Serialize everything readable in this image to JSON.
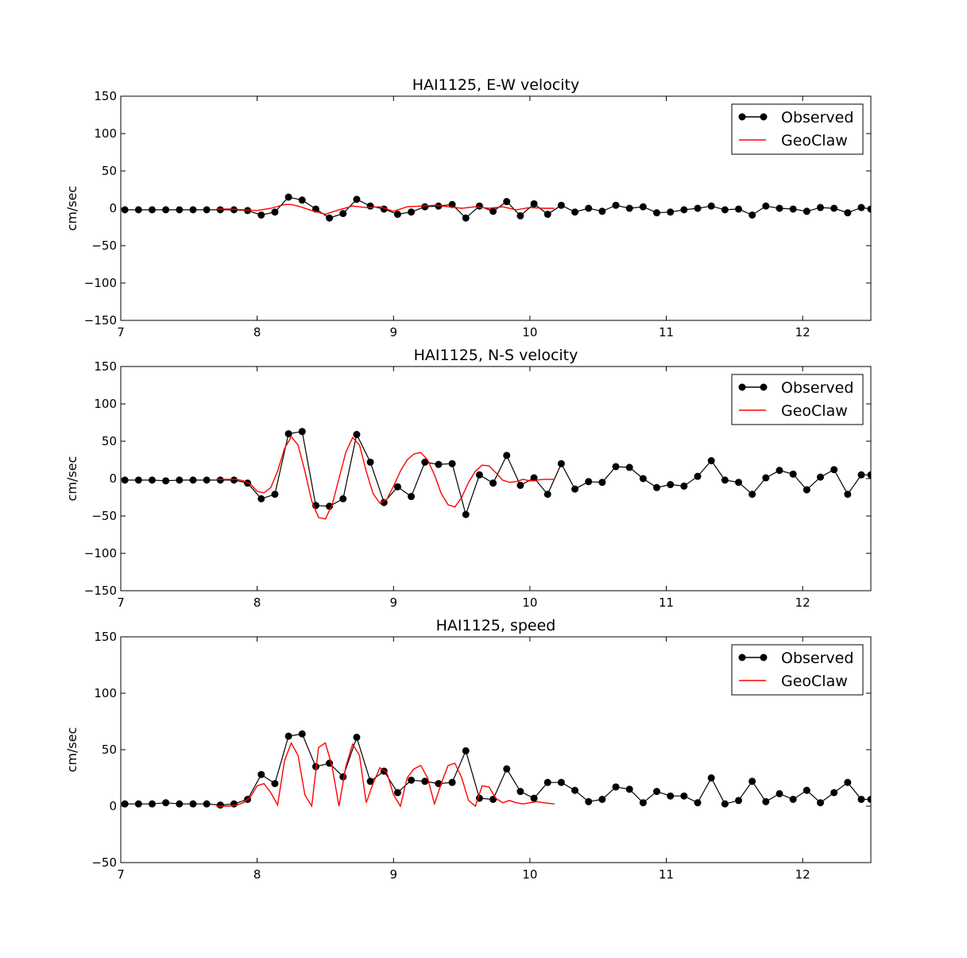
{
  "chart_data": [
    {
      "type": "line",
      "title": "HAI1125, E-W velocity",
      "xlabel": "",
      "ylabel": "cm/sec",
      "xlim": [
        7,
        12.5
      ],
      "ylim": [
        -150,
        150
      ],
      "xticks": [
        "7",
        "8",
        "9",
        "10",
        "11",
        "12"
      ],
      "yticks": [
        "150",
        "100",
        "50",
        "0",
        "−50",
        "−100",
        "−150"
      ],
      "legend_position": "top-right",
      "series": [
        {
          "name": "Observed",
          "color": "#000000",
          "style": "line-with-markers",
          "x": [
            7.03,
            7.13,
            7.23,
            7.33,
            7.43,
            7.53,
            7.63,
            7.73,
            7.83,
            7.93,
            8.03,
            8.13,
            8.23,
            8.33,
            8.43,
            8.53,
            8.63,
            8.73,
            8.83,
            8.93,
            9.03,
            9.13,
            9.23,
            9.33,
            9.43,
            9.53,
            9.63,
            9.73,
            9.83,
            9.93,
            10.03,
            10.13,
            10.23,
            10.33,
            10.43,
            10.53,
            10.63,
            10.73,
            10.83,
            10.93,
            11.03,
            11.13,
            11.23,
            11.33,
            11.43,
            11.53,
            11.63,
            11.73,
            11.83,
            11.93,
            12.03,
            12.13,
            12.23,
            12.33,
            12.43,
            12.5
          ],
          "y": [
            -2,
            -2,
            -2,
            -2,
            -2,
            -2,
            -2,
            -2,
            -2,
            -3,
            -9,
            -5,
            15,
            11,
            -1,
            -13,
            -7,
            12,
            3,
            -1,
            -8,
            -5,
            2,
            3,
            5,
            -13,
            3,
            -4,
            9,
            -10,
            6,
            -8,
            4,
            -5,
            0,
            -4,
            4,
            0,
            2,
            -6,
            -5,
            -2,
            0,
            3,
            -2,
            -1,
            -9,
            3,
            0,
            -1,
            -4,
            1,
            0,
            -6,
            1,
            -1
          ]
        },
        {
          "name": "GeoClaw",
          "color": "#ff0000",
          "style": "line",
          "x": [
            7.7,
            7.8,
            7.9,
            8.0,
            8.1,
            8.2,
            8.25,
            8.3,
            8.4,
            8.5,
            8.6,
            8.7,
            8.8,
            8.9,
            9.0,
            9.1,
            9.2,
            9.3,
            9.4,
            9.5,
            9.6,
            9.7,
            9.8,
            9.9,
            10.0,
            10.1,
            10.18
          ],
          "y": [
            -1,
            -1,
            -2,
            -3,
            0,
            5,
            5,
            3,
            -3,
            -8,
            -2,
            3,
            1,
            2,
            -4,
            2,
            3,
            4,
            2,
            0,
            2,
            0,
            2,
            -2,
            1,
            0,
            0
          ]
        }
      ]
    },
    {
      "type": "line",
      "title": "HAI1125, N-S velocity",
      "xlabel": "",
      "ylabel": "cm/sec",
      "xlim": [
        7,
        12.5
      ],
      "ylim": [
        -150,
        150
      ],
      "xticks": [
        "7",
        "8",
        "9",
        "10",
        "11",
        "12"
      ],
      "yticks": [
        "150",
        "100",
        "50",
        "0",
        "−50",
        "−100",
        "−150"
      ],
      "legend_position": "top-right",
      "series": [
        {
          "name": "Observed",
          "color": "#000000",
          "style": "line-with-markers",
          "x": [
            7.03,
            7.13,
            7.23,
            7.33,
            7.43,
            7.53,
            7.63,
            7.73,
            7.83,
            7.93,
            8.03,
            8.13,
            8.23,
            8.33,
            8.43,
            8.53,
            8.63,
            8.73,
            8.83,
            8.93,
            9.03,
            9.13,
            9.23,
            9.33,
            9.43,
            9.53,
            9.63,
            9.73,
            9.83,
            9.93,
            10.03,
            10.13,
            10.23,
            10.33,
            10.43,
            10.53,
            10.63,
            10.73,
            10.83,
            10.93,
            11.03,
            11.13,
            11.23,
            11.33,
            11.43,
            11.53,
            11.63,
            11.73,
            11.83,
            11.93,
            12.03,
            12.13,
            12.23,
            12.33,
            12.43,
            12.5
          ],
          "y": [
            -2,
            -2,
            -2,
            -3,
            -2,
            -2,
            -2,
            -2,
            -2,
            -6,
            -27,
            -21,
            60,
            63,
            -36,
            -37,
            -27,
            59,
            22,
            -32,
            -11,
            -24,
            22,
            19,
            20,
            -48,
            5,
            -6,
            31,
            -9,
            1,
            -21,
            20,
            -14,
            -4,
            -5,
            16,
            15,
            0,
            -12,
            -8,
            -10,
            3,
            24,
            -2,
            -5,
            -21,
            1,
            11,
            6,
            -15,
            2,
            12,
            -21,
            5,
            5
          ]
        },
        {
          "name": "GeoClaw",
          "color": "#ff0000",
          "style": "line",
          "x": [
            7.7,
            7.8,
            7.85,
            7.9,
            7.95,
            8.0,
            8.05,
            8.1,
            8.15,
            8.2,
            8.25,
            8.3,
            8.35,
            8.4,
            8.45,
            8.5,
            8.55,
            8.6,
            8.65,
            8.7,
            8.75,
            8.8,
            8.85,
            8.9,
            8.95,
            9.0,
            9.05,
            9.1,
            9.15,
            9.2,
            9.25,
            9.3,
            9.35,
            9.4,
            9.45,
            9.5,
            9.55,
            9.6,
            9.65,
            9.7,
            9.75,
            9.8,
            9.85,
            9.9,
            9.95,
            10.0,
            10.05,
            10.1,
            10.18
          ],
          "y": [
            -1,
            -1,
            -1,
            -3,
            -7,
            -17,
            -19,
            -12,
            10,
            40,
            56,
            45,
            10,
            -30,
            -52,
            -54,
            -35,
            0,
            35,
            55,
            45,
            10,
            -20,
            -33,
            -28,
            -10,
            10,
            25,
            33,
            35,
            25,
            5,
            -20,
            -35,
            -38,
            -25,
            -5,
            10,
            18,
            17,
            8,
            -2,
            -5,
            -4,
            -1,
            -3,
            -2,
            -1,
            -1
          ]
        }
      ]
    },
    {
      "type": "line",
      "title": "HAI1125, speed",
      "xlabel": "",
      "ylabel": "cm/sec",
      "xlim": [
        7,
        12.5
      ],
      "ylim": [
        -50,
        150
      ],
      "xticks": [
        "7",
        "8",
        "9",
        "10",
        "11",
        "12"
      ],
      "yticks": [
        "150",
        "100",
        "50",
        "0",
        "−50"
      ],
      "legend_position": "top-right",
      "series": [
        {
          "name": "Observed",
          "color": "#000000",
          "style": "line-with-markers",
          "x": [
            7.03,
            7.13,
            7.23,
            7.33,
            7.43,
            7.53,
            7.63,
            7.73,
            7.83,
            7.93,
            8.03,
            8.13,
            8.23,
            8.33,
            8.43,
            8.53,
            8.63,
            8.73,
            8.83,
            8.93,
            9.03,
            9.13,
            9.23,
            9.33,
            9.43,
            9.53,
            9.63,
            9.73,
            9.83,
            9.93,
            10.03,
            10.13,
            10.23,
            10.33,
            10.43,
            10.53,
            10.63,
            10.73,
            10.83,
            10.93,
            11.03,
            11.13,
            11.23,
            11.33,
            11.43,
            11.53,
            11.63,
            11.73,
            11.83,
            11.93,
            12.03,
            12.13,
            12.23,
            12.33,
            12.43,
            12.5
          ],
          "y": [
            2,
            2,
            2,
            3,
            2,
            2,
            2,
            1,
            2,
            6,
            28,
            20,
            62,
            64,
            35,
            38,
            26,
            61,
            22,
            31,
            12,
            23,
            22,
            20,
            21,
            49,
            7,
            6,
            33,
            13,
            7,
            21,
            21,
            14,
            4,
            6,
            17,
            15,
            3,
            13,
            9,
            9,
            3,
            25,
            2,
            5,
            22,
            4,
            11,
            6,
            14,
            3,
            12,
            21,
            6,
            6
          ]
        },
        {
          "name": "GeoClaw",
          "color": "#ff0000",
          "style": "line",
          "x": [
            7.7,
            7.8,
            7.85,
            7.9,
            7.95,
            8.0,
            8.05,
            8.1,
            8.15,
            8.2,
            8.25,
            8.3,
            8.35,
            8.4,
            8.45,
            8.5,
            8.55,
            8.6,
            8.65,
            8.7,
            8.75,
            8.8,
            8.85,
            8.9,
            8.95,
            9.0,
            9.05,
            9.1,
            9.15,
            9.2,
            9.25,
            9.3,
            9.35,
            9.4,
            9.45,
            9.5,
            9.55,
            9.6,
            9.65,
            9.7,
            9.75,
            9.8,
            9.85,
            9.9,
            9.95,
            10.0,
            10.05,
            10.1,
            10.18
          ],
          "y": [
            0,
            0,
            1,
            3,
            8,
            18,
            20,
            12,
            1,
            40,
            56,
            45,
            10,
            0,
            52,
            56,
            35,
            0,
            35,
            55,
            45,
            3,
            20,
            34,
            30,
            10,
            0,
            25,
            33,
            36,
            25,
            2,
            20,
            36,
            38,
            25,
            5,
            0,
            18,
            17,
            7,
            3,
            5,
            3,
            2,
            3,
            4,
            3,
            2
          ]
        }
      ]
    }
  ]
}
